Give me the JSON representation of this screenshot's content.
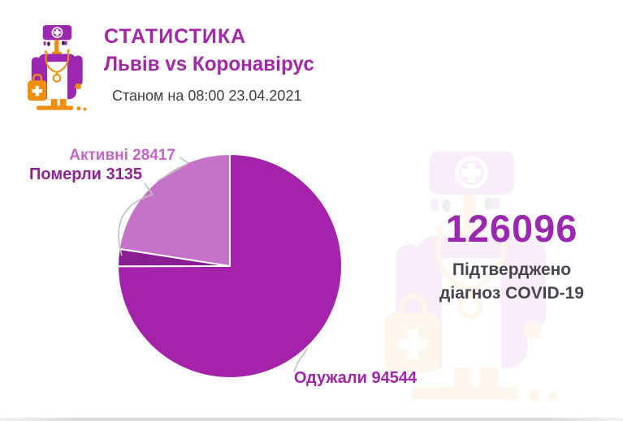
{
  "colors": {
    "accent_purple": "#9C27B0",
    "accent_orange": "#EF8E0D",
    "text_dark": "#3E3E46"
  },
  "header": {
    "title": "СТАТИСТИКА",
    "subtitle": "Львів vs Коронавірус",
    "as_of": "Станом на 08:00 23.04.2021"
  },
  "summary": {
    "total": "126096",
    "caption_line1": "Підтверджено",
    "caption_line2": "діагноз COVID-19"
  },
  "chart_data": {
    "type": "pie",
    "title": "СТАТИСТИКА",
    "subtitle": "Львів vs Коронавірус",
    "as_of": "08:00 23.04.2021",
    "total_confirmed": 126096,
    "direction": "clockwise",
    "start_angle_deg": 0,
    "legend_position": "outside-labels-with-leader-lines",
    "slices": [
      {
        "key": "recovered",
        "label": "Одужали",
        "value": 94544,
        "percent": 75.0,
        "color": "#A522AA",
        "display": "Одужали 94544"
      },
      {
        "key": "deaths",
        "label": "Померли",
        "value": 3135,
        "percent": 2.5,
        "color": "#8A1C94",
        "display": "Померли 3135"
      },
      {
        "key": "active",
        "label": "Активні",
        "value": 28417,
        "percent": 22.5,
        "color": "#C473C8",
        "display": "Активні 28417"
      }
    ]
  }
}
